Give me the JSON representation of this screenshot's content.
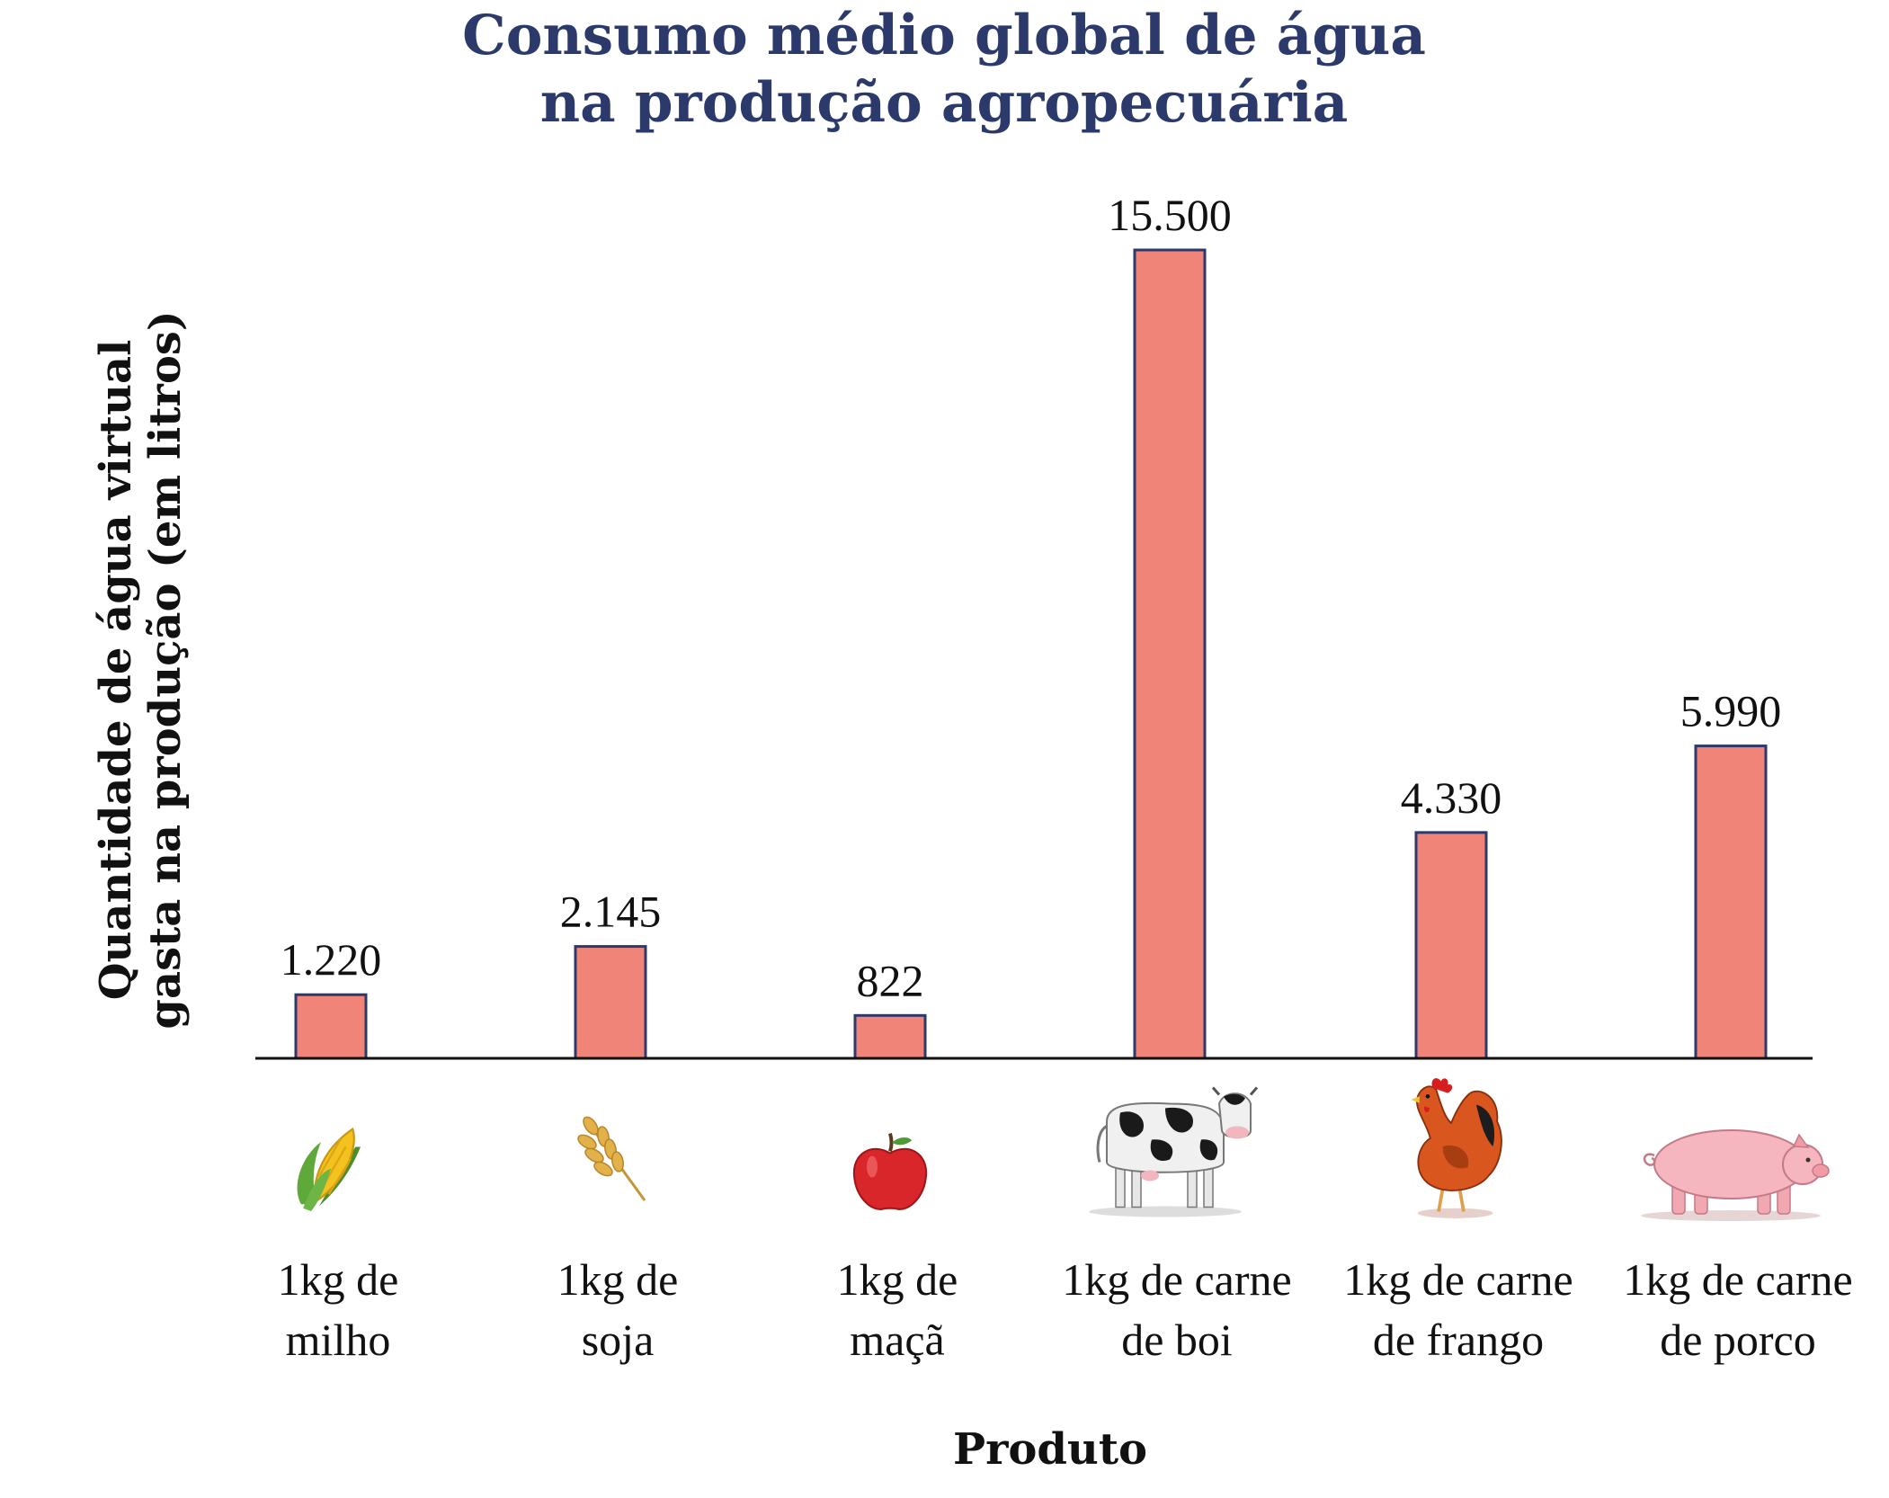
{
  "chart_data": {
    "type": "bar",
    "title": [
      "Consumo médio global de água",
      "na produção agropecuária"
    ],
    "xlabel": "Produto",
    "ylabel": [
      "Quantidade de água virtual",
      "gasta na produção (em litros)"
    ],
    "categories": [
      [
        "1kg de",
        "milho"
      ],
      [
        "1kg de",
        "soja"
      ],
      [
        "1kg de",
        "maçã"
      ],
      [
        "1kg de carne",
        "de boi"
      ],
      [
        "1kg de carne",
        "de frango"
      ],
      [
        "1kg de carne",
        "de porco"
      ]
    ],
    "values": [
      1220,
      2145,
      822,
      15500,
      4330,
      5990
    ],
    "value_labels": [
      "1.220",
      "2.145",
      "822",
      "15.500",
      "4.330",
      "5.990"
    ],
    "icons": [
      "corn-icon",
      "wheat-icon",
      "apple-icon",
      "cow-icon",
      "chicken-icon",
      "pig-icon"
    ],
    "ylim": [
      0,
      15500
    ],
    "grid": false,
    "legend": "none"
  },
  "colors": {
    "bar_fill": "#f08478",
    "bar_stroke": "#2b3a6b",
    "title": "#2b3a6b",
    "text": "#111111",
    "axis": "#111111"
  }
}
